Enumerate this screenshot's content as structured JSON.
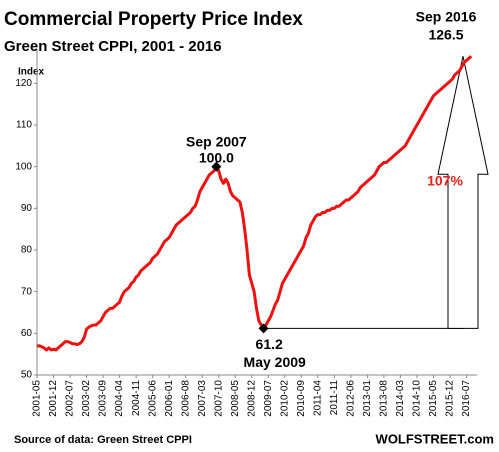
{
  "chart_data": {
    "type": "line",
    "title": "Commercial Property Price Index",
    "subtitle": "Green Street CPPI, 2001 - 2016",
    "y_label": "Index",
    "source": "Source of data: Green Street CPPI",
    "brand": "WOLFSTREET.com",
    "annotations": [
      "Sep 2007",
      "100.0",
      "61.2",
      "May 2009",
      "Sep 2016",
      "126.5",
      "107%"
    ],
    "x": [
      "2001-05",
      "2001-06",
      "2001-07",
      "2001-08",
      "2001-09",
      "2001-10",
      "2001-11",
      "2001-12",
      "2002-01",
      "2002-02",
      "2002-03",
      "2002-04",
      "2002-05",
      "2002-06",
      "2002-07",
      "2002-08",
      "2002-09",
      "2002-10",
      "2002-11",
      "2002-12",
      "2003-01",
      "2003-02",
      "2003-03",
      "2003-04",
      "2003-05",
      "2003-06",
      "2003-07",
      "2003-08",
      "2003-09",
      "2003-10",
      "2003-11",
      "2003-12",
      "2004-01",
      "2004-02",
      "2004-03",
      "2004-04",
      "2004-05",
      "2004-06",
      "2004-07",
      "2004-08",
      "2004-09",
      "2004-10",
      "2004-11",
      "2004-12",
      "2005-01",
      "2005-02",
      "2005-03",
      "2005-04",
      "2005-05",
      "2005-06",
      "2005-07",
      "2005-08",
      "2005-09",
      "2005-10",
      "2005-11",
      "2005-12",
      "2006-01",
      "2006-02",
      "2006-03",
      "2006-04",
      "2006-05",
      "2006-06",
      "2006-07",
      "2006-08",
      "2006-09",
      "2006-10",
      "2006-11",
      "2006-12",
      "2007-01",
      "2007-02",
      "2007-03",
      "2007-04",
      "2007-05",
      "2007-06",
      "2007-07",
      "2007-08",
      "2007-09",
      "2007-10",
      "2007-11",
      "2007-12",
      "2008-01",
      "2008-02",
      "2008-03",
      "2008-04",
      "2008-05",
      "2008-06",
      "2008-07",
      "2008-08",
      "2008-09",
      "2008-10",
      "2008-11",
      "2008-12",
      "2009-01",
      "2009-02",
      "2009-03",
      "2009-04",
      "2009-05",
      "2009-06",
      "2009-07",
      "2009-08",
      "2009-09",
      "2009-10",
      "2009-11",
      "2009-12",
      "2010-01",
      "2010-02",
      "2010-03",
      "2010-04",
      "2010-05",
      "2010-06",
      "2010-07",
      "2010-08",
      "2010-09",
      "2010-10",
      "2010-11",
      "2010-12",
      "2011-01",
      "2011-02",
      "2011-03",
      "2011-04",
      "2011-05",
      "2011-06",
      "2011-07",
      "2011-08",
      "2011-09",
      "2011-10",
      "2011-11",
      "2011-12",
      "2012-01",
      "2012-02",
      "2012-03",
      "2012-04",
      "2012-05",
      "2012-06",
      "2012-07",
      "2012-08",
      "2012-09",
      "2012-10",
      "2012-11",
      "2012-12",
      "2013-01",
      "2013-02",
      "2013-03",
      "2013-04",
      "2013-05",
      "2013-06",
      "2013-07",
      "2013-08",
      "2013-09",
      "2013-10",
      "2013-11",
      "2013-12",
      "2014-01",
      "2014-02",
      "2014-03",
      "2014-04",
      "2014-05",
      "2014-06",
      "2014-07",
      "2014-08",
      "2014-09",
      "2014-10",
      "2014-11",
      "2014-12",
      "2015-01",
      "2015-02",
      "2015-03",
      "2015-04",
      "2015-05",
      "2015-06",
      "2015-07",
      "2015-08",
      "2015-09",
      "2015-10",
      "2015-11",
      "2015-12",
      "2016-01",
      "2016-02",
      "2016-03",
      "2016-04",
      "2016-05",
      "2016-06",
      "2016-07",
      "2016-08",
      "2016-09"
    ],
    "xticks": [
      "2001-05",
      "2001-12",
      "2002-07",
      "2003-02",
      "2003-09",
      "2004-04",
      "2004-11",
      "2005-06",
      "2006-01",
      "2006-08",
      "2007-03",
      "2007-10",
      "2008-05",
      "2008-12",
      "2009-07",
      "2010-02",
      "2010-09",
      "2011-04",
      "2011-11",
      "2012-06",
      "2013-01",
      "2013-08",
      "2014-03",
      "2014-10",
      "2015-05",
      "2015-12",
      "2016-07"
    ],
    "series": [
      {
        "name": "Green Street CPPI",
        "color": "#ee1111",
        "values": [
          57,
          57,
          56.8,
          56.5,
          56,
          56.5,
          56,
          56.2,
          56,
          56.5,
          57,
          57.5,
          58,
          58,
          57.8,
          57.5,
          57.5,
          57.3,
          57.5,
          58,
          59,
          61,
          61.5,
          61.8,
          62,
          62,
          62.5,
          63,
          64,
          65,
          65.5,
          66,
          66,
          66.5,
          67,
          67.5,
          69,
          70,
          70.5,
          71,
          72,
          72.5,
          73.5,
          74,
          75,
          75.5,
          76,
          76.5,
          77,
          78,
          78.5,
          79,
          80,
          81,
          82,
          82.5,
          83,
          84,
          85,
          86,
          86.5,
          87,
          87.5,
          88,
          88.5,
          89,
          90,
          90.5,
          92,
          94,
          95,
          96,
          97,
          98,
          98.5,
          99,
          100,
          99,
          97,
          96,
          97,
          96,
          94,
          93,
          92.5,
          92,
          91.5,
          89,
          85,
          80,
          74,
          72,
          70,
          66,
          63,
          62,
          61.2,
          62,
          63,
          64,
          65.5,
          67,
          68,
          70,
          72,
          73,
          74,
          75,
          76,
          77,
          78,
          79,
          80,
          81,
          83,
          84,
          86,
          87,
          88,
          88.5,
          88.5,
          89,
          89,
          89.5,
          89.5,
          90,
          90,
          90.5,
          90.5,
          91,
          91.5,
          92,
          92,
          92.5,
          93,
          93.5,
          94,
          95,
          95.5,
          96,
          96.5,
          97,
          97.5,
          98,
          99,
          100,
          100.5,
          101,
          101,
          101.5,
          102,
          102.5,
          103,
          103.5,
          104,
          104.5,
          105,
          106,
          107,
          108,
          109,
          110,
          111,
          112,
          113,
          114,
          115,
          116,
          117,
          117.5,
          118,
          118.5,
          119,
          119.5,
          120,
          120.5,
          121,
          122,
          122.5,
          123,
          124,
          125,
          125.5,
          126,
          126.5
        ]
      }
    ],
    "ylim": [
      50,
      128
    ],
    "yticks": [
      50,
      60,
      70,
      80,
      90,
      100,
      110,
      120
    ],
    "grid": false
  }
}
